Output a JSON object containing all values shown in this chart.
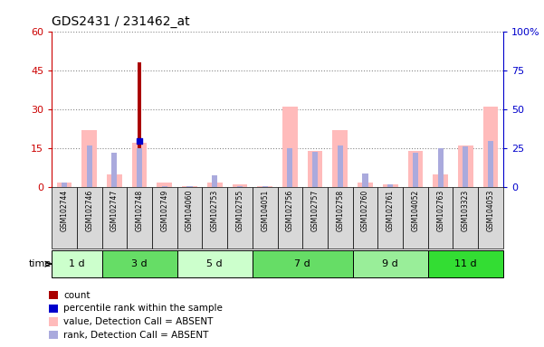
{
  "title": "GDS2431 / 231462_at",
  "samples": [
    "GSM102744",
    "GSM102746",
    "GSM102747",
    "GSM102748",
    "GSM102749",
    "GSM104060",
    "GSM102753",
    "GSM102755",
    "GSM104051",
    "GSM102756",
    "GSM102757",
    "GSM102758",
    "GSM102760",
    "GSM102761",
    "GSM104052",
    "GSM102763",
    "GSM103323",
    "GSM104053"
  ],
  "count_values": [
    0,
    0,
    0,
    48,
    0,
    0,
    0,
    0,
    0,
    0,
    0,
    0,
    0,
    0,
    0,
    0,
    0,
    0
  ],
  "percentile_values": [
    0,
    0,
    0,
    30,
    0,
    0,
    0,
    0,
    0,
    0,
    0,
    0,
    0,
    0,
    0,
    0,
    0,
    0
  ],
  "absent_value": [
    2,
    22,
    5,
    17,
    2,
    0.5,
    2,
    1,
    0.5,
    31,
    14,
    22,
    2,
    1,
    14,
    5,
    16,
    31
  ],
  "absent_rank": [
    3,
    27,
    22,
    25,
    1,
    1,
    8,
    1,
    1,
    25,
    23,
    27,
    9,
    2,
    22,
    25,
    26,
    30
  ],
  "groups": [
    {
      "label": "1 d",
      "start": 0,
      "end": 2,
      "color": "#ccffcc"
    },
    {
      "label": "3 d",
      "start": 2,
      "end": 5,
      "color": "#66dd66"
    },
    {
      "label": "5 d",
      "start": 5,
      "end": 8,
      "color": "#ccffcc"
    },
    {
      "label": "7 d",
      "start": 8,
      "end": 12,
      "color": "#66dd66"
    },
    {
      "label": "9 d",
      "start": 12,
      "end": 15,
      "color": "#99ee99"
    },
    {
      "label": "11 d",
      "start": 15,
      "end": 18,
      "color": "#33dd33"
    }
  ],
  "ylim_left": [
    0,
    60
  ],
  "ylim_right": [
    0,
    100
  ],
  "yticks_left": [
    0,
    15,
    30,
    45,
    60
  ],
  "yticks_right": [
    0,
    25,
    50,
    75,
    100
  ],
  "ytick_labels_right": [
    "0",
    "25",
    "50",
    "75",
    "100%"
  ],
  "left_axis_color": "#cc0000",
  "right_axis_color": "#0000cc",
  "count_color": "#aa0000",
  "percentile_color": "#0000cc",
  "absent_value_color": "#ffbbbb",
  "absent_rank_color": "#aaaadd",
  "legend_items": [
    {
      "label": "count",
      "color": "#aa0000"
    },
    {
      "label": "percentile rank within the sample",
      "color": "#0000cc"
    },
    {
      "label": "value, Detection Call = ABSENT",
      "color": "#ffbbbb"
    },
    {
      "label": "rank, Detection Call = ABSENT",
      "color": "#aaaadd"
    }
  ]
}
